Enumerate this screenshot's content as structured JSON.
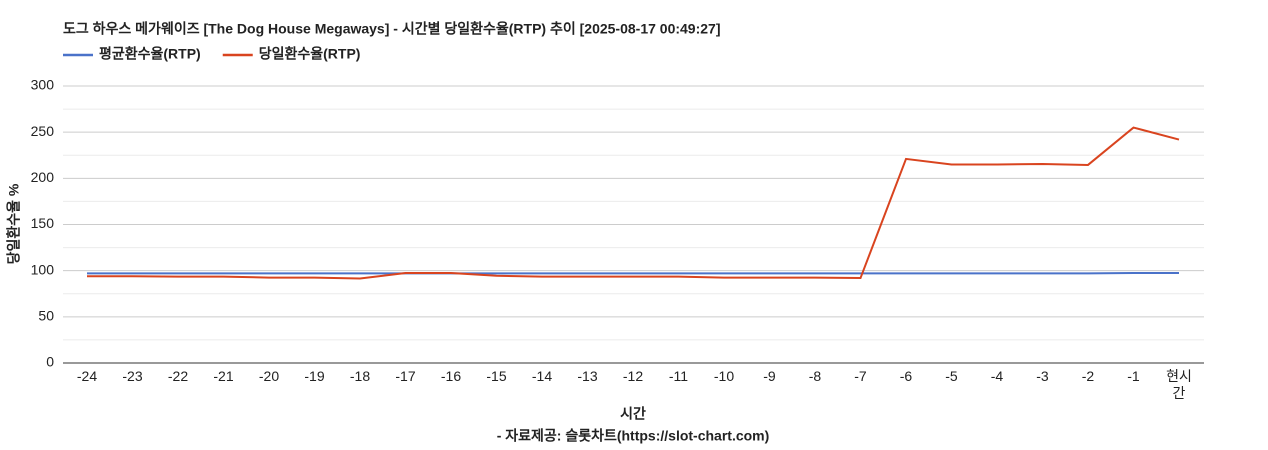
{
  "chart_data": {
    "type": "line",
    "title": "도그 하우스 메가웨이즈 [The Dog House Megaways] - 시간별 당일환수율(RTP) 추이 [2025-08-17 00:49:27]",
    "x_label": "시간",
    "y_label": "당일환수율 %",
    "source": "- 자료제공: 슬롯차트(https://slot-chart.com)",
    "categories": [
      "-24",
      "-23",
      "-22",
      "-21",
      "-20",
      "-19",
      "-18",
      "-17",
      "-16",
      "-15",
      "-14",
      "-13",
      "-12",
      "-11",
      "-10",
      "-9",
      "-8",
      "-7",
      "-6",
      "-5",
      "-4",
      "-3",
      "-2",
      "-1",
      "현시간"
    ],
    "series": [
      {
        "name": "평균환수율(RTP)",
        "color": "#4a72c9",
        "values": [
          97,
          97,
          97,
          97,
          97,
          97,
          97,
          97,
          97,
          97,
          97,
          97,
          97,
          97,
          97,
          97,
          97,
          97,
          97,
          97,
          97,
          97,
          97,
          97.5,
          97.5
        ]
      },
      {
        "name": "당일환수율(RTP)",
        "color": "#d9441f",
        "values": [
          94,
          94,
          93.5,
          93.5,
          92.5,
          92.5,
          91.5,
          97.5,
          97.5,
          94.5,
          93.5,
          93.5,
          93.5,
          93.5,
          92.5,
          92.5,
          92.5,
          92,
          221,
          215,
          215,
          215.5,
          214.5,
          255,
          242
        ]
      }
    ],
    "ylim": [
      0,
      300
    ],
    "yticks": [
      0,
      50,
      100,
      150,
      200,
      250,
      300
    ],
    "minor_yticks": [
      25,
      75,
      125,
      175,
      225,
      275
    ],
    "grid": true,
    "legend": "top-left"
  }
}
